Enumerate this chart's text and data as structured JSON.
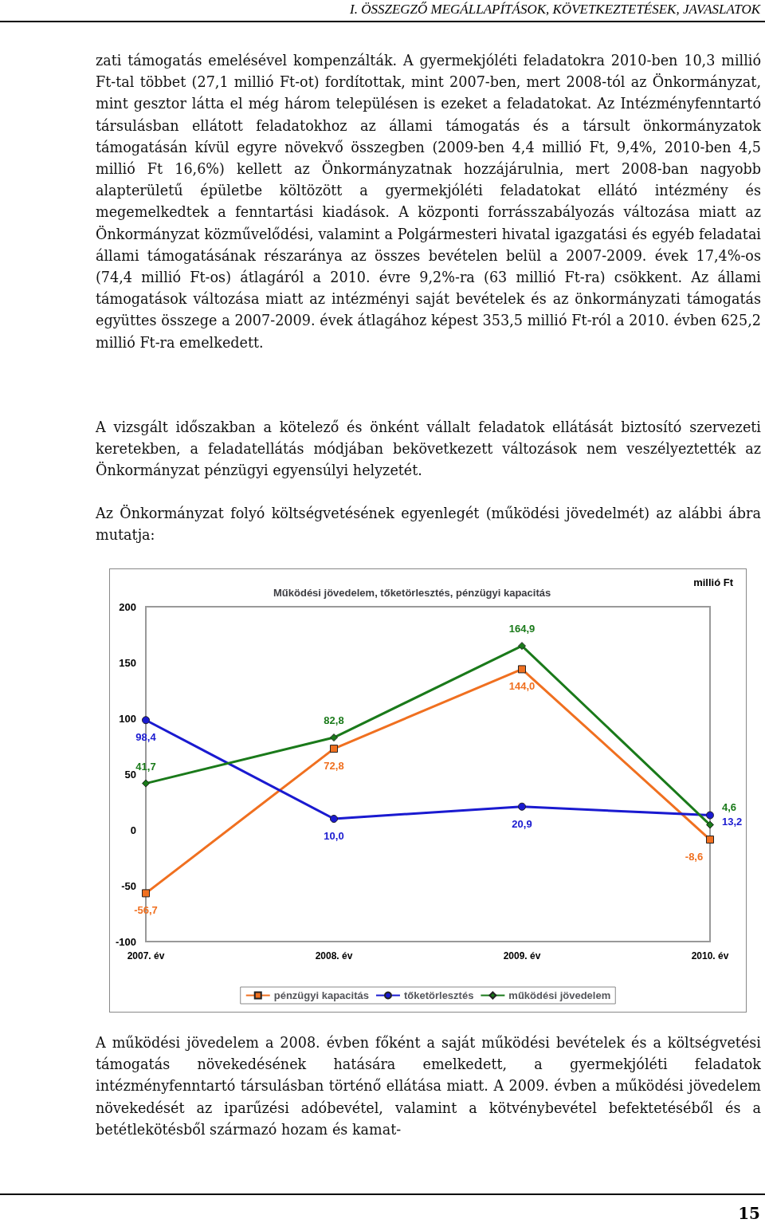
{
  "chart_data": {
    "type": "line",
    "title": "Működési jövedelem, tőketörlesztés, pénzügyi kapacitás",
    "ylabel": "millió Ft",
    "categories": [
      "2007. év",
      "2008. év",
      "2009. év",
      "2010. év"
    ],
    "series": [
      {
        "name": "pénzügyi kapacitás",
        "color": "#f07020",
        "marker": "square",
        "values": [
          -56.7,
          72.8,
          144.0,
          -8.6
        ],
        "value_labels": [
          "-56,7",
          "72,8",
          "144,0",
          "-8,6"
        ]
      },
      {
        "name": "tőketörlesztés",
        "color": "#1a1ad0",
        "marker": "circle",
        "values": [
          98.4,
          10.0,
          20.9,
          13.2
        ],
        "value_labels": [
          "98,4",
          "10,0",
          "20,9",
          "13,2"
        ]
      },
      {
        "name": "működési jövedelem",
        "color": "#1a7a1a",
        "marker": "diamond",
        "values": [
          41.7,
          82.8,
          164.9,
          4.6
        ],
        "value_labels": [
          "41,7",
          "82,8",
          "164,9",
          "4,6"
        ]
      }
    ],
    "ylim": [
      -100,
      200
    ],
    "yticks": [
      -100,
      -50,
      0,
      50,
      100,
      150,
      200
    ],
    "grid": false,
    "legend": "bottom",
    "line_style": "solid",
    "annotations": [
      "I. ÖSSZEGZŐ MEGÁLLAPÍTÁSOK, KÖVETKEZTETÉSEK, JAVASLATOK",
      "zati támogatás emelésével kompenzálták. A gyermekjóléti feladatokra 2010-ben 10,3 millió Ft-tal többet (27,1 millió Ft-ot) fordítottak, mint 2007-ben, mert 2008-tól az Önkormányzat, mint gesztor látta el még három településen is ezeket a feladatokat. Az Intézményfenntartó társulásban ellátott feladatokhoz az állami támogatás és a társult önkormányzatok támogatásán kívül egyre növekvő összegben (2009-ben 4,4 millió Ft, 9,4%, 2010-ben 4,5 millió Ft 16,6%) kellett az Önkormányzatnak hozzájárulnia, mert 2008-ban nagyobb alapterületű épületbe költözött a gyermekjóléti feladatokat ellátó intézmény és megemelkedtek a fenntartási kiadások. A központi forrásszabályozás változása miatt az Önkormányzat közművelődési, valamint a Polgármesteri hivatal igazgatási és egyéb feladatai állami támogatásának részaránya az összes bevételen belül a 2007-2009. évek 17,4%-os (74,4 millió Ft-os) átlagáról a 2010. évre 9,2%-ra (63 millió Ft-ra) csökkent. Az állami támogatások változása miatt az intézményi saját bevételek és az önkormányzati támogatás együttes összege a 2007-2009. évek átlagához képest 353,5 millió Ft-ról a 2010. évben 625,2 millió Ft-ra emelkedett.",
      "A vizsgált időszakban a kötelező és önként vállalt feladatok ellátását biztosító szervezeti keretekben, a feladatellátás módjában bekövetkezett változások nem veszélyeztették az Önkormányzat pénzügyi egyensúlyi helyzetét.",
      "Az Önkormányzat folyó költségvetésének egyenlegét (működési jövedelmét) az alábbi ábra mutatja:",
      "A működési jövedelem a 2008. évben főként a saját működési bevételek és a költségvetési támogatás növekedésének hatására emelkedett, a gyermekjóléti feladatok intézményfenntartó társulásban történő ellátása miatt. A 2009. évben a működési jövedelem növekedését az iparűzési adóbevétel, valamint a kötvénybevétel befektetéséből és a betétlekötésből származó hozam és kamat-",
      "15"
    ]
  }
}
